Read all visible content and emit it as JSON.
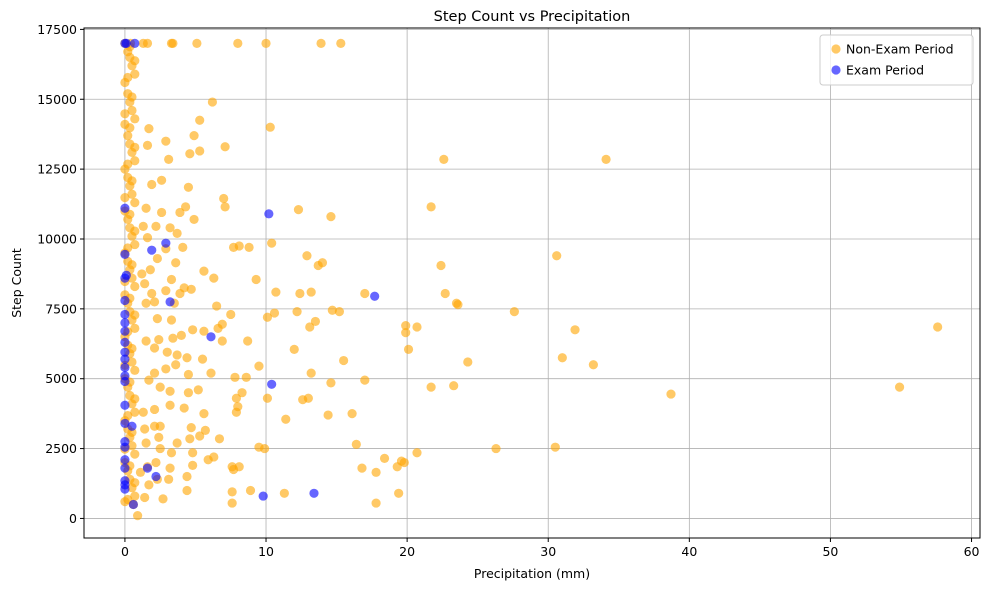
{
  "chart_data": {
    "type": "scatter",
    "title": "Step Count vs Precipitation",
    "xlabel": "Precipitation (mm)",
    "ylabel": "Step Count",
    "xlim": [
      -2.9,
      60.6
    ],
    "ylim": [
      -700,
      17550
    ],
    "xticks": [
      0,
      10,
      20,
      30,
      40,
      50,
      60
    ],
    "yticks": [
      0,
      2500,
      5000,
      7500,
      10000,
      12500,
      15000,
      17500
    ],
    "grid": true,
    "legend_position": "top-right",
    "series": [
      {
        "name": "Non-Exam Period",
        "color": "#ffa500",
        "alpha": 0.6,
        "points": [
          [
            13.9,
            17000
          ],
          [
            15.3,
            17000
          ],
          [
            10.0,
            17000
          ],
          [
            8.0,
            17000
          ],
          [
            5.1,
            17000
          ],
          [
            3.4,
            17000
          ],
          [
            3.3,
            17000
          ],
          [
            1.6,
            17000
          ],
          [
            1.3,
            17000
          ],
          [
            0.4,
            17000
          ],
          [
            6.2,
            14900
          ],
          [
            5.3,
            14250
          ],
          [
            10.3,
            14000
          ],
          [
            1.7,
            13950
          ],
          [
            4.9,
            13700
          ],
          [
            2.9,
            13500
          ],
          [
            1.6,
            13350
          ],
          [
            7.1,
            13300
          ],
          [
            5.3,
            13150
          ],
          [
            4.6,
            13050
          ],
          [
            3.1,
            12850
          ],
          [
            22.6,
            12850
          ],
          [
            34.1,
            12850
          ],
          [
            2.6,
            12100
          ],
          [
            4.5,
            11850
          ],
          [
            1.9,
            11950
          ],
          [
            7.0,
            11450
          ],
          [
            21.7,
            11150
          ],
          [
            12.3,
            11050
          ],
          [
            7.1,
            11150
          ],
          [
            4.3,
            11150
          ],
          [
            14.6,
            10800
          ],
          [
            1.5,
            11100
          ],
          [
            3.9,
            10950
          ],
          [
            2.6,
            10950
          ],
          [
            4.9,
            10700
          ],
          [
            3.2,
            10400
          ],
          [
            2.2,
            10450
          ],
          [
            1.3,
            10450
          ],
          [
            1.6,
            10050
          ],
          [
            3.7,
            10200
          ],
          [
            10.4,
            9850
          ],
          [
            2.9,
            9650
          ],
          [
            8.8,
            9700
          ],
          [
            8.1,
            9750
          ],
          [
            7.7,
            9700
          ],
          [
            4.1,
            9700
          ],
          [
            12.9,
            9400
          ],
          [
            14.0,
            9150
          ],
          [
            13.7,
            9050
          ],
          [
            22.4,
            9050
          ],
          [
            30.6,
            9400
          ],
          [
            3.6,
            9150
          ],
          [
            2.3,
            9300
          ],
          [
            1.8,
            8900
          ],
          [
            1.2,
            8750
          ],
          [
            5.6,
            8850
          ],
          [
            6.3,
            8600
          ],
          [
            9.3,
            8550
          ],
          [
            3.3,
            8550
          ],
          [
            4.7,
            8200
          ],
          [
            4.2,
            8250
          ],
          [
            3.9,
            8050
          ],
          [
            2.9,
            8150
          ],
          [
            1.9,
            8050
          ],
          [
            1.4,
            8400
          ],
          [
            10.7,
            8100
          ],
          [
            12.4,
            8050
          ],
          [
            13.2,
            8100
          ],
          [
            17.0,
            8050
          ],
          [
            22.7,
            8050
          ],
          [
            23.5,
            7700
          ],
          [
            23.6,
            7650
          ],
          [
            27.6,
            7400
          ],
          [
            3.5,
            7700
          ],
          [
            2.1,
            7750
          ],
          [
            1.5,
            7700
          ],
          [
            6.5,
            7600
          ],
          [
            7.5,
            7300
          ],
          [
            10.6,
            7350
          ],
          [
            10.1,
            7200
          ],
          [
            12.2,
            7400
          ],
          [
            14.7,
            7450
          ],
          [
            15.2,
            7400
          ],
          [
            13.5,
            7050
          ],
          [
            13.1,
            6850
          ],
          [
            19.9,
            6900
          ],
          [
            20.7,
            6850
          ],
          [
            19.9,
            6650
          ],
          [
            31.9,
            6750
          ],
          [
            57.6,
            6850
          ],
          [
            2.3,
            7150
          ],
          [
            3.3,
            7100
          ],
          [
            4.8,
            6750
          ],
          [
            5.6,
            6700
          ],
          [
            6.9,
            6950
          ],
          [
            6.6,
            6800
          ],
          [
            4.0,
            6550
          ],
          [
            3.4,
            6450
          ],
          [
            2.4,
            6400
          ],
          [
            1.5,
            6350
          ],
          [
            2.1,
            6100
          ],
          [
            3.0,
            5950
          ],
          [
            3.7,
            5850
          ],
          [
            4.4,
            5750
          ],
          [
            5.5,
            5700
          ],
          [
            6.9,
            6350
          ],
          [
            8.7,
            6350
          ],
          [
            12.0,
            6050
          ],
          [
            15.5,
            5650
          ],
          [
            20.1,
            6050
          ],
          [
            24.3,
            5600
          ],
          [
            31.0,
            5750
          ],
          [
            33.2,
            5500
          ],
          [
            3.6,
            5500
          ],
          [
            2.9,
            5350
          ],
          [
            2.1,
            5200
          ],
          [
            1.7,
            4950
          ],
          [
            4.5,
            5150
          ],
          [
            6.1,
            5200
          ],
          [
            7.8,
            5050
          ],
          [
            8.6,
            5050
          ],
          [
            9.5,
            5450
          ],
          [
            13.2,
            5200
          ],
          [
            14.6,
            4850
          ],
          [
            17.0,
            4950
          ],
          [
            21.7,
            4700
          ],
          [
            23.3,
            4750
          ],
          [
            54.9,
            4700
          ],
          [
            38.7,
            4450
          ],
          [
            2.5,
            4700
          ],
          [
            3.2,
            4550
          ],
          [
            4.5,
            4500
          ],
          [
            5.2,
            4600
          ],
          [
            7.9,
            4300
          ],
          [
            8.3,
            4500
          ],
          [
            10.1,
            4300
          ],
          [
            12.6,
            4250
          ],
          [
            13.0,
            4300
          ],
          [
            3.2,
            4050
          ],
          [
            2.1,
            3900
          ],
          [
            1.3,
            3800
          ],
          [
            4.2,
            3950
          ],
          [
            5.6,
            3750
          ],
          [
            7.9,
            3800
          ],
          [
            8.0,
            4000
          ],
          [
            11.4,
            3550
          ],
          [
            14.4,
            3700
          ],
          [
            16.1,
            3750
          ],
          [
            2.1,
            3300
          ],
          [
            1.4,
            3200
          ],
          [
            2.5,
            3300
          ],
          [
            4.7,
            3250
          ],
          [
            5.7,
            3150
          ],
          [
            5.3,
            2950
          ],
          [
            4.6,
            2850
          ],
          [
            3.7,
            2700
          ],
          [
            2.4,
            2900
          ],
          [
            1.5,
            2700
          ],
          [
            6.7,
            2850
          ],
          [
            9.5,
            2550
          ],
          [
            9.9,
            2500
          ],
          [
            16.4,
            2650
          ],
          [
            20.7,
            2350
          ],
          [
            26.3,
            2500
          ],
          [
            30.5,
            2550
          ],
          [
            2.5,
            2500
          ],
          [
            3.3,
            2350
          ],
          [
            4.8,
            2350
          ],
          [
            5.9,
            2100
          ],
          [
            6.3,
            2200
          ],
          [
            7.6,
            1850
          ],
          [
            7.7,
            1750
          ],
          [
            8.1,
            1850
          ],
          [
            2.2,
            2000
          ],
          [
            1.6,
            1850
          ],
          [
            1.1,
            1650
          ],
          [
            3.2,
            1800
          ],
          [
            4.8,
            1900
          ],
          [
            16.8,
            1800
          ],
          [
            18.4,
            2150
          ],
          [
            19.3,
            1850
          ],
          [
            19.6,
            2050
          ],
          [
            19.8,
            2000
          ],
          [
            17.8,
            1650
          ],
          [
            3.1,
            1400
          ],
          [
            2.3,
            1400
          ],
          [
            1.7,
            1200
          ],
          [
            4.4,
            1500
          ],
          [
            4.4,
            1000
          ],
          [
            7.6,
            950
          ],
          [
            8.9,
            1000
          ],
          [
            11.3,
            900
          ],
          [
            19.4,
            900
          ],
          [
            17.8,
            550
          ],
          [
            1.4,
            750
          ],
          [
            2.7,
            700
          ],
          [
            7.6,
            550
          ],
          [
            0.9,
            100
          ],
          [
            0.6,
            500
          ]
        ],
        "axis_points_y": [
          17000,
          16700,
          16500,
          16200,
          15900,
          15600,
          15200,
          14900,
          14600,
          14300,
          14100,
          13700,
          13400,
          13100,
          12800,
          12500,
          12200,
          11900,
          11600,
          11300,
          11000,
          10700,
          10400,
          10100,
          9800,
          9500,
          9200,
          8900,
          8600,
          8300,
          8000,
          7700,
          7400,
          7100,
          6800,
          6500,
          6200,
          5900,
          5600,
          5300,
          5000,
          4700,
          4400,
          4100,
          3800,
          3500,
          3200,
          2900,
          2600,
          2300,
          2000,
          1700,
          1400,
          1100,
          800,
          600
        ],
        "axis_points_x": [
          0.0,
          0.2,
          0.35,
          0.5,
          0.7
        ]
      },
      {
        "name": "Exam Period",
        "color": "#0000ff",
        "alpha": 0.6,
        "points": [
          [
            0.0,
            17000
          ],
          [
            0.1,
            17000
          ],
          [
            0.7,
            17000
          ],
          [
            0.0,
            11100
          ],
          [
            10.2,
            10900
          ],
          [
            2.9,
            9850
          ],
          [
            1.9,
            9600
          ],
          [
            0.0,
            9450
          ],
          [
            0.1,
            8700
          ],
          [
            0.0,
            8600
          ],
          [
            3.2,
            7750
          ],
          [
            17.7,
            7950
          ],
          [
            0.0,
            7800
          ],
          [
            0.0,
            7300
          ],
          [
            0.0,
            7000
          ],
          [
            0.0,
            6700
          ],
          [
            6.1,
            6500
          ],
          [
            0.0,
            6300
          ],
          [
            0.0,
            5950
          ],
          [
            0.0,
            5700
          ],
          [
            0.0,
            5400
          ],
          [
            0.0,
            5100
          ],
          [
            0.0,
            4900
          ],
          [
            10.4,
            4800
          ],
          [
            0.0,
            4050
          ],
          [
            0.0,
            3400
          ],
          [
            0.5,
            3300
          ],
          [
            0.0,
            2750
          ],
          [
            0.0,
            2550
          ],
          [
            0.0,
            2100
          ],
          [
            0.0,
            1800
          ],
          [
            1.6,
            1800
          ],
          [
            2.2,
            1500
          ],
          [
            0.0,
            1350
          ],
          [
            0.0,
            1200
          ],
          [
            0.0,
            1050
          ],
          [
            13.4,
            900
          ],
          [
            9.8,
            800
          ],
          [
            0.6,
            500
          ]
        ]
      }
    ]
  }
}
